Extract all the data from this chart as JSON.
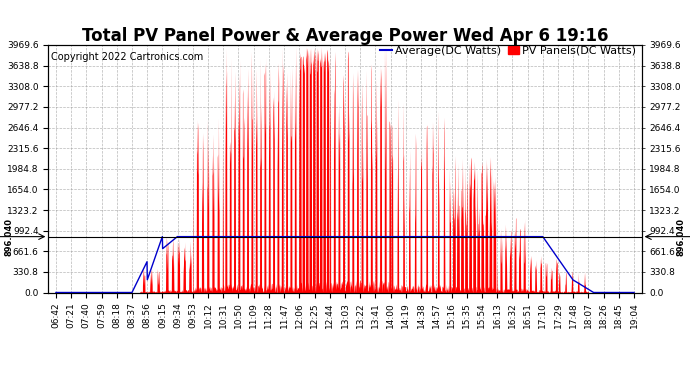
{
  "title": "Total PV Panel Power & Average Power Wed Apr 6 19:16",
  "copyright": "Copyright 2022 Cartronics.com",
  "yticks": [
    0.0,
    330.8,
    661.6,
    992.4,
    1323.2,
    1654.0,
    1984.8,
    2315.6,
    2646.4,
    2977.2,
    3308.0,
    3638.8,
    3969.6
  ],
  "ylim_min": 0.0,
  "ylim_max": 3969.6,
  "hline_value": 896.04,
  "xtick_labels": [
    "06:42",
    "07:21",
    "07:40",
    "07:59",
    "08:18",
    "08:37",
    "08:56",
    "09:15",
    "09:34",
    "09:53",
    "10:12",
    "10:31",
    "10:50",
    "11:09",
    "11:28",
    "11:47",
    "12:06",
    "12:25",
    "12:44",
    "13:03",
    "13:22",
    "13:41",
    "14:00",
    "14:19",
    "14:38",
    "14:57",
    "15:16",
    "15:35",
    "15:54",
    "16:13",
    "16:32",
    "16:51",
    "17:10",
    "17:29",
    "17:48",
    "18:07",
    "18:26",
    "18:45",
    "19:04"
  ],
  "legend_avg_label": "Average(DC Watts)",
  "legend_pv_label": "PV Panels(DC Watts)",
  "avg_color": "#0000cc",
  "pv_color": "#ff0000",
  "grid_color": "#999999",
  "bg_color": "#ffffff",
  "hline_color": "#000000",
  "title_fontsize": 12,
  "copyright_fontsize": 7,
  "legend_fontsize": 8,
  "tick_fontsize": 6.5
}
